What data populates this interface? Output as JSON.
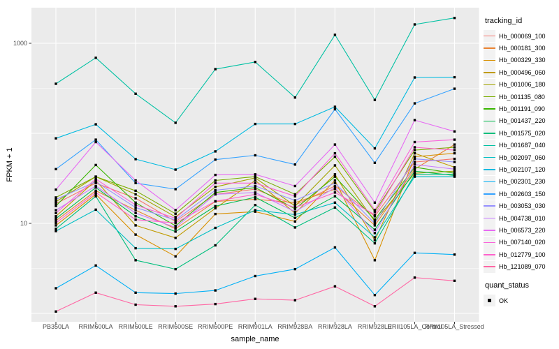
{
  "chart_data": {
    "type": "line",
    "title": "",
    "xlabel": "sample_name",
    "ylabel": "FPKM + 1",
    "y_scale": "log10",
    "ylim": [
      1,
      2400
    ],
    "y_major_breaks": [
      1,
      10,
      100,
      1000
    ],
    "y_minor_breaks": [
      3.1623,
      31.623,
      316.23
    ],
    "y_tick_labels": [
      {
        "label": "1000",
        "value": 1000
      },
      {
        "label": "10",
        "value": 10
      }
    ],
    "grid": true,
    "panel_bg": "#EBEBEB",
    "gridline_color": "#FFFFFF",
    "marker": {
      "shape": "square",
      "color": "#000000"
    },
    "categories": [
      "PB350LA",
      "RRIM600LA",
      "RRIM600LE",
      "RRIM600SE",
      "RRIM600PE",
      "RRIM901LA",
      "RRIM928BA",
      "RRIM928LA",
      "RRIM928LE",
      "RRII105LA_Control",
      "RRII105LA_Stressed"
    ],
    "legend": {
      "title": "tracking_id",
      "position": "right"
    },
    "legend2": {
      "title": "quant_status",
      "items": [
        "OK"
      ]
    },
    "series": [
      {
        "name": "Hb_000069_100",
        "color": "#F8766D",
        "values": [
          16.5,
          28,
          19,
          10.5,
          21,
          24,
          16,
          26,
          12,
          48,
          52
        ]
      },
      {
        "name": "Hb_000181_300",
        "color": "#EA8331",
        "values": [
          10.7,
          23,
          14,
          8.7,
          17.5,
          18.5,
          17,
          24,
          9.5,
          40,
          75
        ]
      },
      {
        "name": "Hb_000329_330",
        "color": "#D89000",
        "values": [
          9.5,
          21,
          7.5,
          4.3,
          12.7,
          13.5,
          10.5,
          30,
          3.9,
          55,
          60
        ]
      },
      {
        "name": "Hb_000496_060",
        "color": "#C09B00",
        "values": [
          12,
          30,
          9.5,
          6.9,
          14.7,
          30,
          13,
          35,
          6.5,
          60,
          42
        ]
      },
      {
        "name": "Hb_001006_180",
        "color": "#A3A500",
        "values": [
          17.4,
          33,
          21,
          11.8,
          25.4,
          32,
          15.6,
          44,
          10.5,
          36,
          38
        ]
      },
      {
        "name": "Hb_001135_080",
        "color": "#7CAE00",
        "values": [
          19.4,
          33,
          23,
          12.8,
          30,
          33,
          21,
          55,
          13.5,
          65,
          70
        ]
      },
      {
        "name": "Hb_001191_090",
        "color": "#39B600",
        "values": [
          15.6,
          44.5,
          17,
          9.4,
          22,
          25,
          14.5,
          33,
          11,
          42,
          36
        ]
      },
      {
        "name": "Hb_001437_220",
        "color": "#00BB4E",
        "values": [
          11.3,
          25,
          12,
          8.1,
          15.5,
          19.5,
          11.5,
          20,
          8.5,
          38,
          34
        ]
      },
      {
        "name": "Hb_001575_020",
        "color": "#00BF7D",
        "values": [
          8.7,
          20,
          3.9,
          3.1,
          5.7,
          16,
          9,
          15,
          6,
          35,
          35
        ]
      },
      {
        "name": "Hb_001687_040",
        "color": "#00C1A3",
        "values": [
          355,
          690,
          275,
          131,
          516,
          620,
          250,
          1240,
          235,
          1620,
          1910
        ]
      },
      {
        "name": "Hb_002097_060",
        "color": "#00BFC4",
        "values": [
          8.2,
          14.2,
          5.3,
          5.2,
          8.9,
          14,
          12.5,
          17,
          7,
          33,
          33
        ]
      },
      {
        "name": "Hb_002107_120",
        "color": "#00BAE0",
        "values": [
          88,
          126,
          51.7,
          39.5,
          63,
          127,
          127,
          197,
          68,
          417,
          420
        ]
      },
      {
        "name": "Hb_002301_230",
        "color": "#00B0F6",
        "values": [
          1.9,
          3.4,
          1.7,
          1.66,
          1.8,
          2.6,
          3.1,
          5.4,
          1.6,
          4.7,
          4.5
        ]
      },
      {
        "name": "Hb_002603_150",
        "color": "#35A2FF",
        "values": [
          40,
          85,
          28,
          24,
          51,
          57,
          45,
          185,
          47,
          215,
          313
        ]
      },
      {
        "name": "Hb_003053_030",
        "color": "#9590FF",
        "values": [
          18.4,
          29,
          15,
          10.9,
          23.3,
          26,
          18,
          28,
          10,
          52,
          48
        ]
      },
      {
        "name": "Hb_004738_010",
        "color": "#C77CFF",
        "values": [
          14,
          26,
          13,
          9,
          21,
          22,
          13.5,
          25,
          7.8,
          45,
          40
        ]
      },
      {
        "name": "Hb_006573_220",
        "color": "#E76BF3",
        "values": [
          23.7,
          80,
          30,
          14,
          34.5,
          35,
          26,
          75,
          17,
          140,
          105
        ]
      },
      {
        "name": "Hb_007140_020",
        "color": "#FA62DB",
        "values": [
          13,
          31,
          16,
          11.4,
          28,
          28,
          20,
          60,
          14,
          80,
          85
        ]
      },
      {
        "name": "Hb_012779_100",
        "color": "#FF61CC",
        "values": [
          10.1,
          22,
          11,
          10.1,
          17.6,
          21,
          15,
          22,
          12.5,
          70,
          65
        ]
      },
      {
        "name": "Hb_121089_070",
        "color": "#FF67A4",
        "values": [
          1.05,
          1.7,
          1.25,
          1.2,
          1.27,
          1.45,
          1.4,
          2.0,
          1.2,
          2.5,
          2.3
        ]
      }
    ]
  }
}
